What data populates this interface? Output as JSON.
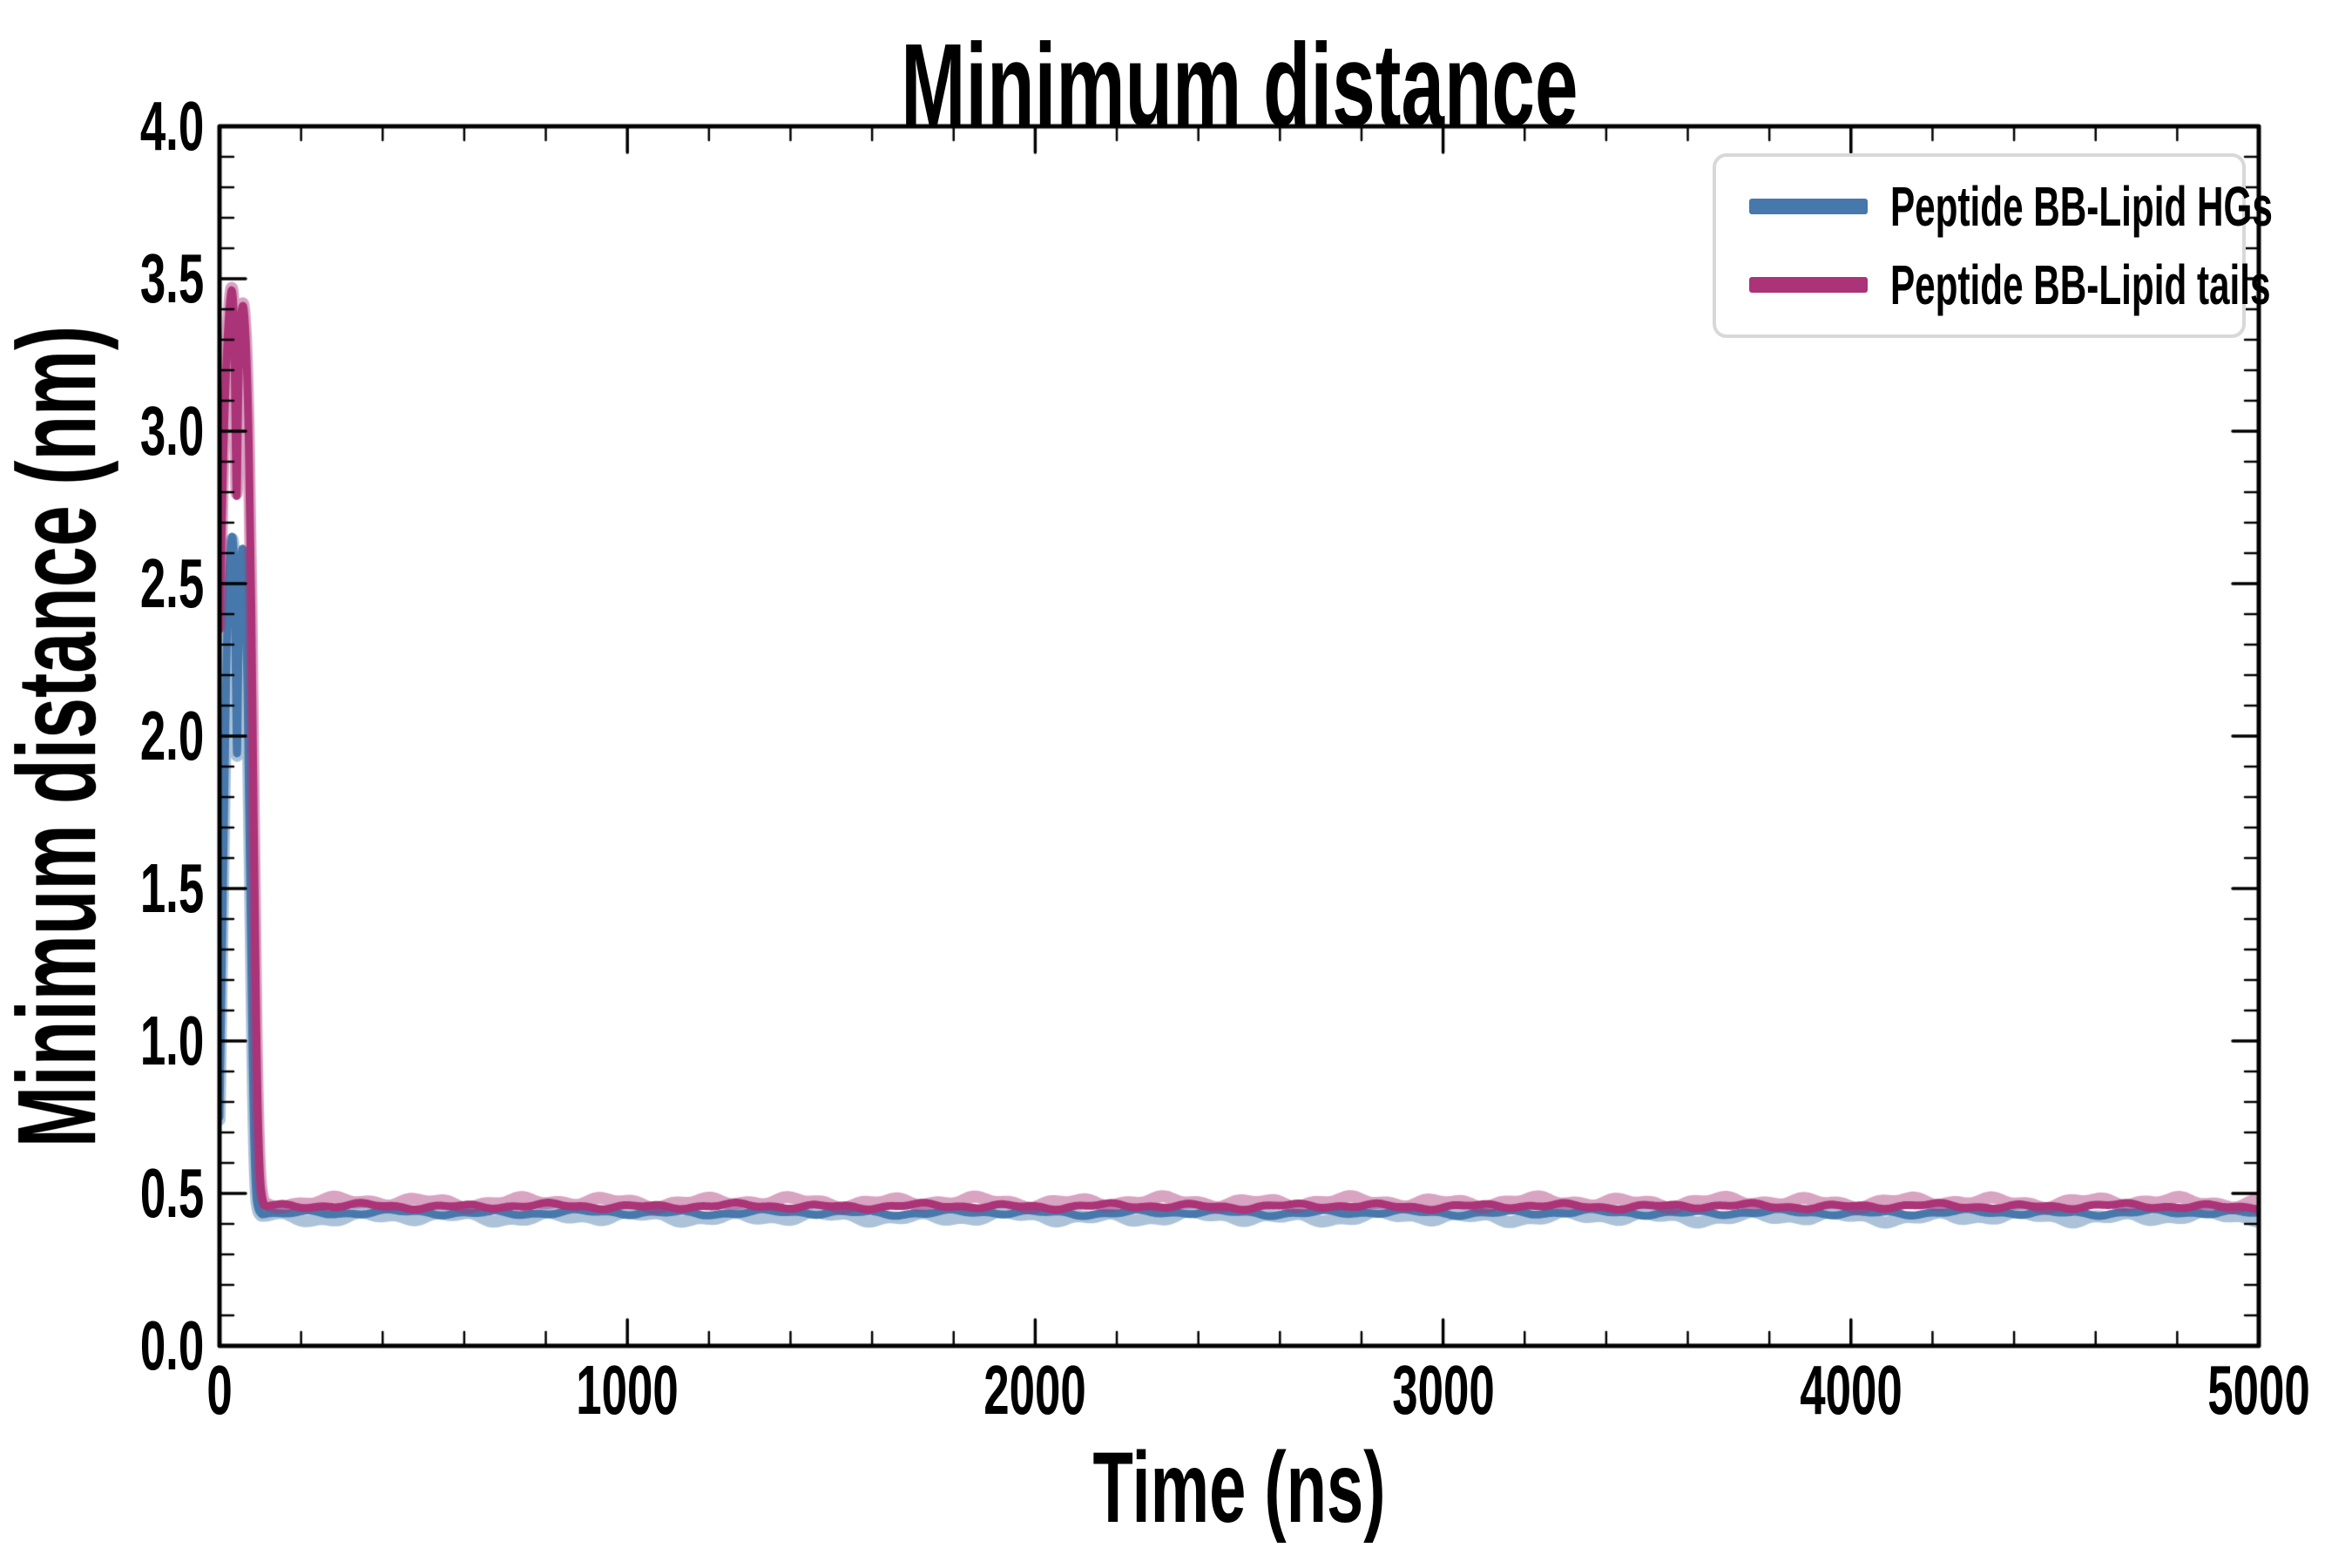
{
  "page": {
    "background": "#ffffff"
  },
  "chart_data": {
    "type": "line",
    "title": "Minimum distance",
    "xlabel": "Time (ns)",
    "ylabel": "Minimum distance (nm)",
    "xlim": [
      0,
      5000
    ],
    "ylim": [
      0.0,
      4.0
    ],
    "x_major_ticks": [
      0,
      1000,
      2000,
      3000,
      4000,
      5000
    ],
    "x_tick_labels": [
      "0",
      "1000",
      "2000",
      "3000",
      "4000",
      "5000"
    ],
    "x_minor_step": 200,
    "y_major_ticks": [
      0.0,
      0.5,
      1.0,
      1.5,
      2.0,
      2.5,
      3.0,
      3.5,
      4.0
    ],
    "y_tick_labels": [
      "0.0",
      "0.5",
      "1.0",
      "1.5",
      "2.0",
      "2.5",
      "3.0",
      "3.5",
      "4.0"
    ],
    "y_minor_step": 0.1,
    "grid": false,
    "tick_direction": "in",
    "axis_color": "#000000",
    "legend_position": "upper right",
    "legend_border_color": "#d8d8d8",
    "line_width_smooth": 9,
    "line_width_raw": 14,
    "raw_alpha": 0.45,
    "series": [
      {
        "name": "Peptide BB-Lipid HGs",
        "color": "#4678ab",
        "spike": [
          [
            0,
            0.75
          ],
          [
            6,
            1.25
          ],
          [
            13,
            1.95
          ],
          [
            20,
            2.45
          ],
          [
            27,
            2.62
          ],
          [
            32,
            2.67
          ],
          [
            36,
            2.58
          ],
          [
            40,
            2.2
          ],
          [
            43,
            1.85
          ],
          [
            46,
            2.25
          ],
          [
            50,
            2.5
          ],
          [
            55,
            2.63
          ],
          [
            60,
            2.59
          ],
          [
            66,
            2.35
          ],
          [
            72,
            1.85
          ],
          [
            78,
            1.2
          ],
          [
            84,
            0.7
          ],
          [
            89,
            0.5
          ],
          [
            94,
            0.45
          ],
          [
            100,
            0.437
          ]
        ],
        "plateau": {
          "from": 100,
          "to": 5000,
          "mean": 0.437,
          "noise_amp": 0.012
        },
        "raw_offset": -0.013,
        "raw_noise_amp": 0.02
      },
      {
        "name": "Peptide BB-Lipid tails",
        "color": "#ab3377",
        "spike": [
          [
            0,
            2.35
          ],
          [
            6,
            2.75
          ],
          [
            12,
            3.05
          ],
          [
            20,
            3.33
          ],
          [
            27,
            3.45
          ],
          [
            31,
            3.47
          ],
          [
            35,
            3.4
          ],
          [
            39,
            3.05
          ],
          [
            42,
            2.7
          ],
          [
            45,
            3.05
          ],
          [
            49,
            3.3
          ],
          [
            55,
            3.42
          ],
          [
            61,
            3.4
          ],
          [
            68,
            3.2
          ],
          [
            75,
            2.75
          ],
          [
            81,
            2.1
          ],
          [
            87,
            1.35
          ],
          [
            93,
            0.8
          ],
          [
            99,
            0.55
          ],
          [
            104,
            0.49
          ],
          [
            110,
            0.458
          ]
        ],
        "plateau": {
          "from": 110,
          "to": 5000,
          "mean": 0.458,
          "noise_amp": 0.012
        },
        "raw_offset": 0.013,
        "raw_noise_amp": 0.02
      }
    ]
  }
}
